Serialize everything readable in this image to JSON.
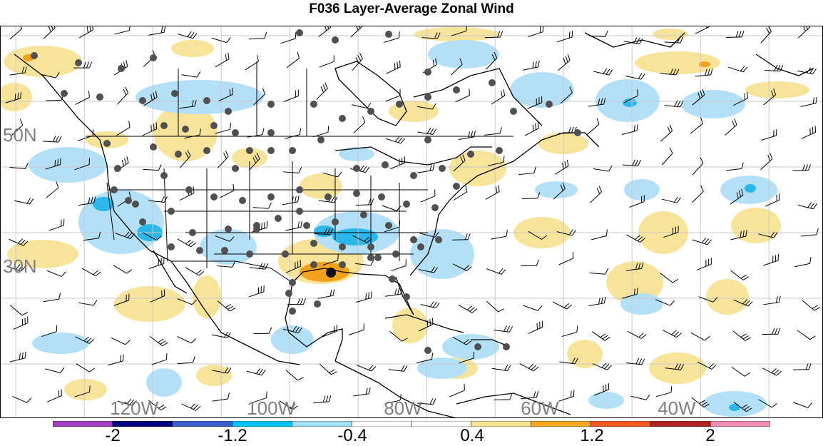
{
  "title": "F036 Layer-Average Zonal Wind",
  "map": {
    "lat_labels": [
      {
        "text": "50N",
        "lat": 50
      },
      {
        "text": "30N",
        "lat": 30
      }
    ],
    "lon_labels": [
      {
        "text": "120W",
        "lon": -120
      },
      {
        "text": "100W",
        "lon": -100
      },
      {
        "text": "80W",
        "lon": -80
      },
      {
        "text": "60W",
        "lon": -60
      },
      {
        "text": "40W",
        "lon": -40
      }
    ],
    "extent": {
      "lon": [
        -140,
        -20
      ],
      "lat": [
        15,
        63
      ]
    }
  },
  "colorbar": {
    "colors": [
      "#a040c0",
      "#000080",
      "#3a5fcd",
      "#00bfff",
      "#a3dcf5",
      "#ffffff",
      "#ffffff",
      "#f5e291",
      "#f5a623",
      "#f05a1e",
      "#b22222",
      "#f08cb4"
    ],
    "labels": [
      "-2",
      "-1.2",
      "-0.4",
      "0.4",
      "1.2",
      "2"
    ]
  },
  "colors": {
    "light_blue": "#b3e0f7",
    "mid_blue": "#2ab7ea",
    "light_yellow": "#f7e49a",
    "orange": "#f3a21c",
    "station": "#505050",
    "coast": "#000000"
  }
}
